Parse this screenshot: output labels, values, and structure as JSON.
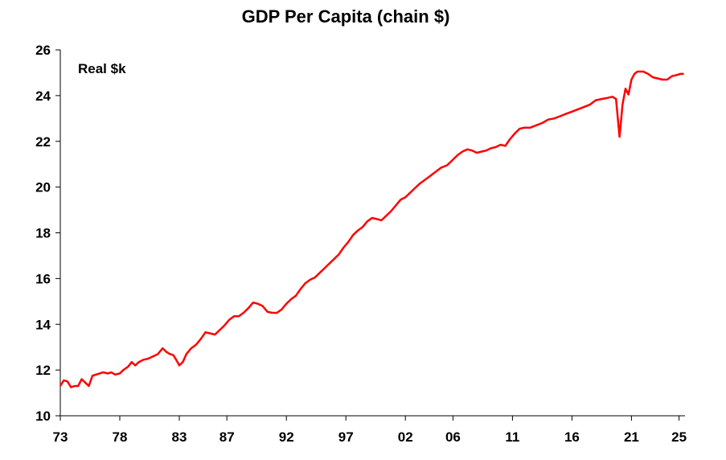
{
  "chart_data": {
    "type": "line",
    "title": "GDP Per Capita (chain $)",
    "unit_label": "Real $k",
    "xlabel": "",
    "ylabel": "",
    "xlim": [
      1973,
      2025.5
    ],
    "ylim": [
      10,
      26
    ],
    "yticks": [
      10,
      12,
      14,
      16,
      18,
      20,
      22,
      24,
      26
    ],
    "xticks": [
      {
        "value": 1973,
        "label": "73"
      },
      {
        "value": 1978,
        "label": "78"
      },
      {
        "value": 1983,
        "label": "83"
      },
      {
        "value": 1987,
        "label": "87"
      },
      {
        "value": 1992,
        "label": "92"
      },
      {
        "value": 1997,
        "label": "97"
      },
      {
        "value": 2002,
        "label": "02"
      },
      {
        "value": 2006,
        "label": "06"
      },
      {
        "value": 2011,
        "label": "11"
      },
      {
        "value": 2016,
        "label": "16"
      },
      {
        "value": 2021,
        "label": "21"
      },
      {
        "value": 2025,
        "label": "25"
      }
    ],
    "grid": false,
    "legend": "none",
    "color": "#ff0000",
    "series": [
      {
        "x": [
          1973.0,
          1973.3,
          1973.6,
          1973.9,
          1974.2,
          1974.5,
          1974.8,
          1975.1,
          1975.4,
          1975.7,
          1976.0,
          1976.3,
          1976.6,
          1977.0,
          1977.3,
          1977.6,
          1978.0,
          1978.3,
          1978.7,
          1979.0,
          1979.3,
          1979.6,
          1980.0,
          1980.4,
          1980.8,
          1981.2,
          1981.6,
          1981.9,
          1982.2,
          1982.5,
          1982.8,
          1983.0,
          1983.3,
          1983.6,
          1984.0,
          1984.4,
          1984.8,
          1985.2,
          1985.6,
          1986.0,
          1986.4,
          1986.8,
          1987.2,
          1987.6,
          1988.0,
          1988.4,
          1988.8,
          1989.2,
          1989.6,
          1990.0,
          1990.4,
          1990.8,
          1991.2,
          1991.6,
          1992.0,
          1992.4,
          1992.8,
          1993.2,
          1993.6,
          1994.0,
          1994.4,
          1994.8,
          1995.2,
          1995.6,
          1996.0,
          1996.4,
          1996.8,
          1997.2,
          1997.6,
          1998.0,
          1998.4,
          1998.8,
          1999.2,
          1999.6,
          2000.0,
          2000.4,
          2000.8,
          2001.2,
          2001.6,
          2002.0,
          2002.4,
          2002.8,
          2003.2,
          2003.6,
          2004.0,
          2004.5,
          2005.0,
          2005.5,
          2006.0,
          2006.4,
          2006.8,
          2007.2,
          2007.6,
          2008.0,
          2008.4,
          2008.8,
          2009.2,
          2009.6,
          2010.0,
          2010.4,
          2010.8,
          2011.2,
          2011.6,
          2012.0,
          2012.5,
          2013.0,
          2013.5,
          2014.0,
          2014.5,
          2015.0,
          2015.5,
          2016.0,
          2016.5,
          2017.0,
          2017.5,
          2018.0,
          2018.5,
          2019.0,
          2019.4,
          2019.7,
          2020.0,
          2020.25,
          2020.5,
          2020.75,
          2021.0,
          2021.25,
          2021.5,
          2021.75,
          2022.0,
          2022.4,
          2022.8,
          2023.2,
          2023.6,
          2024.0,
          2024.4,
          2024.8,
          2025.1,
          2025.4
        ],
        "values": [
          11.3,
          11.55,
          11.5,
          11.25,
          11.3,
          11.3,
          11.6,
          11.45,
          11.3,
          11.75,
          11.8,
          11.85,
          11.9,
          11.85,
          11.9,
          11.8,
          11.85,
          12.0,
          12.15,
          12.35,
          12.2,
          12.35,
          12.45,
          12.5,
          12.6,
          12.7,
          12.95,
          12.8,
          12.7,
          12.65,
          12.4,
          12.2,
          12.35,
          12.7,
          12.95,
          13.1,
          13.35,
          13.65,
          13.6,
          13.55,
          13.75,
          13.95,
          14.2,
          14.35,
          14.35,
          14.5,
          14.7,
          14.95,
          14.9,
          14.8,
          14.55,
          14.5,
          14.5,
          14.65,
          14.9,
          15.1,
          15.25,
          15.55,
          15.8,
          15.95,
          16.05,
          16.25,
          16.45,
          16.65,
          16.85,
          17.05,
          17.35,
          17.6,
          17.9,
          18.1,
          18.25,
          18.5,
          18.65,
          18.6,
          18.55,
          18.75,
          18.95,
          19.2,
          19.45,
          19.55,
          19.75,
          19.95,
          20.15,
          20.3,
          20.45,
          20.65,
          20.85,
          20.95,
          21.2,
          21.4,
          21.55,
          21.65,
          21.6,
          21.5,
          21.55,
          21.6,
          21.7,
          21.75,
          21.85,
          21.8,
          22.1,
          22.35,
          22.55,
          22.6,
          22.6,
          22.7,
          22.8,
          22.95,
          23.0,
          23.1,
          23.2,
          23.3,
          23.4,
          23.5,
          23.6,
          23.8,
          23.85,
          23.9,
          23.95,
          23.85,
          22.2,
          23.6,
          24.3,
          24.05,
          24.7,
          24.95,
          25.05,
          25.05,
          25.05,
          24.95,
          24.8,
          24.75,
          24.7,
          24.7,
          24.85,
          24.9,
          24.95,
          24.95
        ]
      }
    ]
  }
}
